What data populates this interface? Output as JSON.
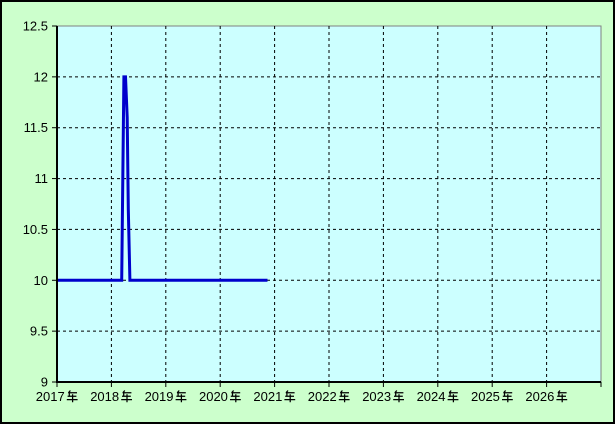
{
  "chart": {
    "outer_bg": "#ccffcc",
    "plot_bg": "#ccffff",
    "frame_border_color": "#000000",
    "plot_border_color": "#808080",
    "axis_color": "#000000",
    "grid_color": "#000000",
    "text_color": "#000000",
    "line_color": "#0000cc"
  },
  "chart_data": {
    "type": "line",
    "title": "",
    "legend": null,
    "x_axis": {
      "label": "",
      "range": [
        2017,
        2027
      ],
      "unit_suffix": "年",
      "ticks": [
        {
          "year": 2017,
          "label": "2017年"
        },
        {
          "year": 2018,
          "label": "2018年"
        },
        {
          "year": 2019,
          "label": "2019年"
        },
        {
          "year": 2020,
          "label": "2020年"
        },
        {
          "year": 2021,
          "label": "2021年"
        },
        {
          "year": 2022,
          "label": "2022年"
        },
        {
          "year": 2023,
          "label": "2023年"
        },
        {
          "year": 2024,
          "label": "2024年"
        },
        {
          "year": 2025,
          "label": "2025年"
        },
        {
          "year": 2026,
          "label": "2026年"
        }
      ],
      "gridline_years": [
        2018,
        2019,
        2020,
        2021,
        2022,
        2023,
        2024,
        2025,
        2026
      ]
    },
    "y_axis": {
      "label": "",
      "range": [
        9,
        12.5
      ],
      "tick_interval": 0.5,
      "ticks": [
        {
          "value": 9,
          "label": "9"
        },
        {
          "value": 9.5,
          "label": "9.5"
        },
        {
          "value": 10,
          "label": "10"
        },
        {
          "value": 10.5,
          "label": "10.5"
        },
        {
          "value": 11,
          "label": "11"
        },
        {
          "value": 11.5,
          "label": "11.5"
        },
        {
          "value": 12,
          "label": "12"
        },
        {
          "value": 12.5,
          "label": "12.5"
        }
      ],
      "gridline_values": [
        9.5,
        10,
        10.5,
        11,
        11.5,
        12
      ]
    },
    "grid": {
      "style": "dashed",
      "on": true
    },
    "series": [
      {
        "name": "value-line",
        "color": "#0000cc",
        "width": 3,
        "points": [
          [
            2017.0,
            10
          ],
          [
            2018.19,
            10
          ],
          [
            2018.23,
            12
          ],
          [
            2018.26,
            12
          ],
          [
            2018.29,
            11.6
          ],
          [
            2018.31,
            10.7
          ],
          [
            2018.34,
            10
          ],
          [
            2020.87,
            10
          ]
        ]
      }
    ]
  }
}
